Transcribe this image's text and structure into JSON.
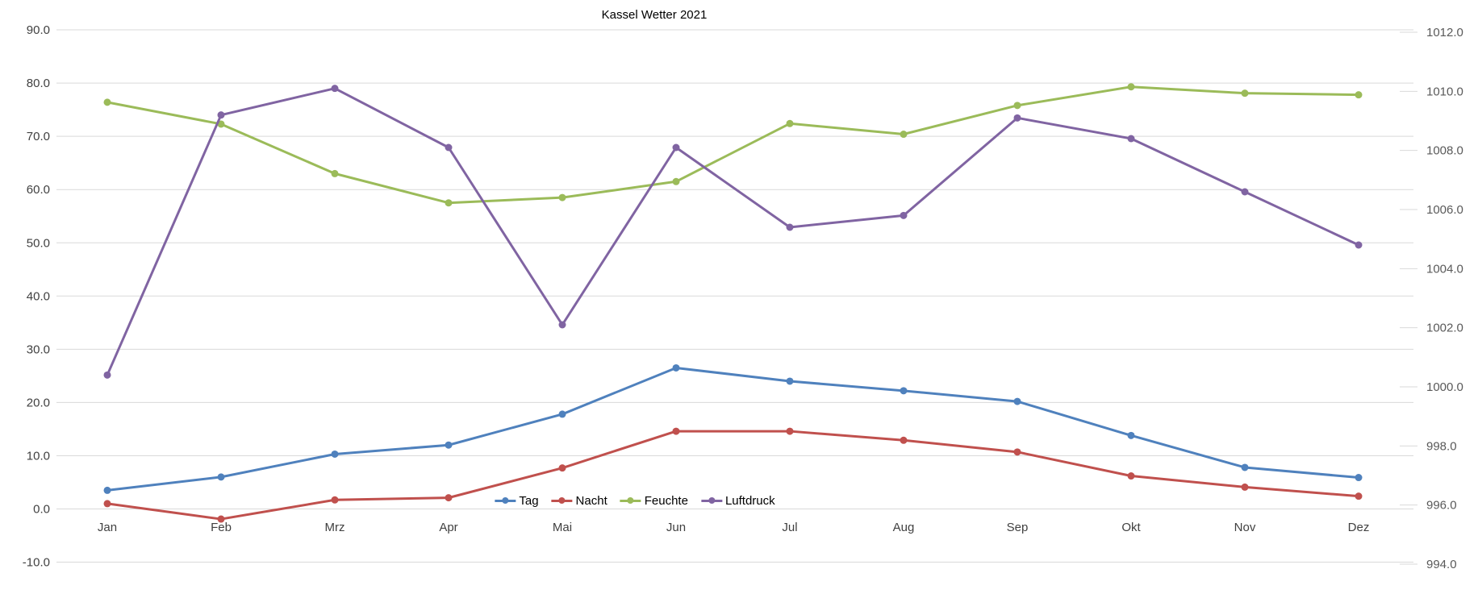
{
  "title": "Kassel Wetter 2021",
  "chart_data": {
    "type": "line",
    "title": "Kassel Wetter 2021",
    "categories": [
      "Jan",
      "Feb",
      "Mrz",
      "Apr",
      "Mai",
      "Jun",
      "Jul",
      "Aug",
      "Sep",
      "Okt",
      "Nov",
      "Dez"
    ],
    "series": [
      {
        "name": "Tag",
        "axis": "left",
        "color": "#4F81BD",
        "values": [
          3.5,
          6.0,
          10.3,
          12.0,
          17.8,
          26.5,
          24.0,
          22.2,
          20.2,
          13.8,
          7.8,
          5.9
        ]
      },
      {
        "name": "Nacht",
        "axis": "left",
        "color": "#C0504D",
        "values": [
          1.0,
          -1.9,
          1.7,
          2.1,
          7.7,
          14.6,
          14.6,
          12.9,
          10.7,
          6.2,
          4.1,
          2.4
        ]
      },
      {
        "name": "Feuchte",
        "axis": "left",
        "color": "#9BBB59",
        "values": [
          76.4,
          72.3,
          63.0,
          57.5,
          58.5,
          61.5,
          72.4,
          70.4,
          75.8,
          79.3,
          78.1,
          77.8
        ]
      },
      {
        "name": "Luftdruck",
        "axis": "right",
        "color": "#8064A2",
        "values": [
          1000.4,
          1009.2,
          1010.1,
          1008.1,
          1002.1,
          1008.1,
          1005.4,
          1005.8,
          1009.1,
          1008.4,
          1006.6,
          1004.8
        ]
      }
    ],
    "left_axis": {
      "min": -10,
      "max": 90,
      "step": 10,
      "tick_labels": [
        "90.0",
        "80.0",
        "70.0",
        "60.0",
        "50.0",
        "40.0",
        "30.0",
        "20.0",
        "10.0",
        "0.0",
        "-10.0"
      ]
    },
    "right_axis": {
      "min": 994,
      "max": 1012,
      "step": 2,
      "tick_labels": [
        "1012.0",
        "1010.0",
        "1008.0",
        "1006.0",
        "1004.0",
        "1002.0",
        "1000.0",
        "998.0",
        "996.0",
        "994.0"
      ]
    },
    "grid": "horizontal",
    "legend_position": "bottom"
  },
  "colors": {
    "grid": "#D9D9D9",
    "background": "#FFFFFF"
  }
}
